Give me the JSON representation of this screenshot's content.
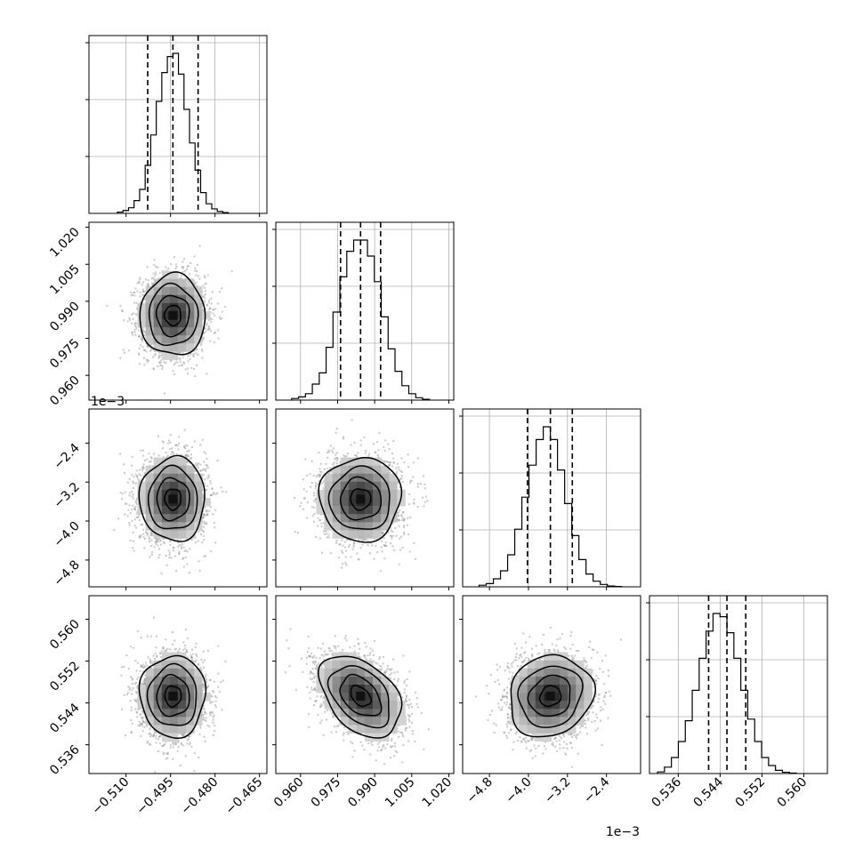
{
  "chart_data": {
    "type": "corner",
    "grid": true,
    "quantile_lines": [
      0.16,
      0.5,
      0.84
    ],
    "params": [
      {
        "id": "p0",
        "range": [
          -0.5225,
          -0.4625
        ],
        "mean": -0.4942,
        "sd": 0.0055,
        "ticks": [
          -0.51,
          -0.495,
          -0.48,
          -0.465
        ],
        "tick_labels": [
          "−0.510",
          "−0.495",
          "−0.480",
          "−0.465"
        ],
        "hist_counts": [
          0.008,
          0.018,
          0.035,
          0.08,
          0.15,
          0.3,
          0.49,
          0.7,
          0.88,
          0.98,
          1.0,
          0.87,
          0.65,
          0.44,
          0.27,
          0.13,
          0.06,
          0.028,
          0.012,
          0.005
        ]
      },
      {
        "id": "p1",
        "range": [
          0.95,
          1.022
        ],
        "mean": 0.9843,
        "sd": 0.0082,
        "ticks": [
          0.96,
          0.975,
          0.99,
          1.005,
          1.02
        ],
        "tick_labels": [
          "0.960",
          "0.975",
          "0.990",
          "1.005",
          "1.020"
        ],
        "hist_counts": [
          0.01,
          0.02,
          0.04,
          0.1,
          0.17,
          0.33,
          0.55,
          0.77,
          0.93,
          1.0,
          1.0,
          0.9,
          0.74,
          0.52,
          0.32,
          0.18,
          0.09,
          0.04,
          0.015,
          0.005
        ]
      },
      {
        "id": "p2",
        "range": [
          -5.35,
          -1.7
        ],
        "mean": -3.55,
        "sd": 0.43,
        "exponent_label": "1e−3",
        "ticks": [
          -4.8,
          -4.0,
          -3.2,
          -2.4
        ],
        "tick_labels": [
          "−4.8",
          "−4.0",
          "−3.2",
          "−2.4"
        ],
        "hist_counts": [
          0.01,
          0.02,
          0.05,
          0.1,
          0.2,
          0.36,
          0.56,
          0.76,
          0.92,
          1.0,
          0.92,
          0.73,
          0.52,
          0.32,
          0.17,
          0.08,
          0.035,
          0.015,
          0.005,
          0.002
        ]
      },
      {
        "id": "p3",
        "range": [
          0.5305,
          0.5645
        ],
        "mean": 0.5453,
        "sd": 0.0039,
        "ticks": [
          0.536,
          0.544,
          0.552,
          0.56
        ],
        "tick_labels": [
          "0.536",
          "0.544",
          "0.552",
          "0.560"
        ],
        "hist_counts": [
          0.01,
          0.04,
          0.1,
          0.2,
          0.33,
          0.52,
          0.72,
          0.89,
          1.0,
          0.98,
          0.88,
          0.72,
          0.52,
          0.34,
          0.2,
          0.1,
          0.05,
          0.02,
          0.008,
          0.003
        ]
      }
    ],
    "correlations": [
      [
        1,
        0,
        0,
        0
      ],
      [
        0,
        1,
        0,
        0
      ],
      [
        0,
        0,
        1,
        0
      ],
      [
        0,
        -0.4,
        0.12,
        1
      ]
    ],
    "quantiles": [
      [
        -0.5027,
        -0.4942,
        -0.4857
      ],
      [
        0.9762,
        0.9843,
        0.9924
      ],
      [
        -4.02,
        -3.55,
        -3.1
      ],
      [
        0.5418,
        0.5453,
        0.5489
      ]
    ]
  }
}
